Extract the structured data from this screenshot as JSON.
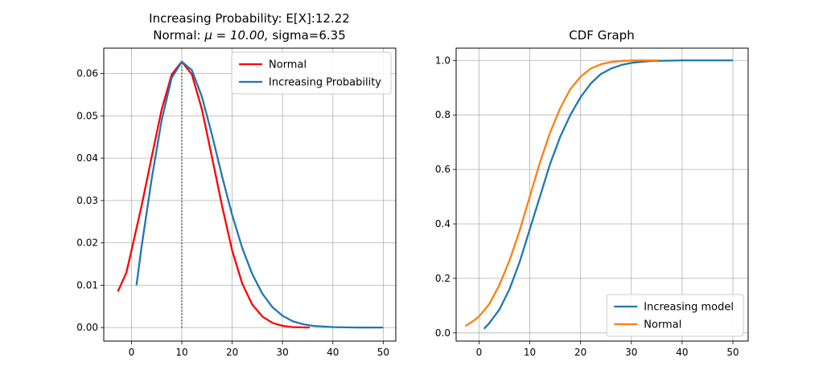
{
  "chart_data": [
    {
      "type": "line",
      "title": "Increasing Probability: E[X]:12.22",
      "subtitle_prefix": "Normal: ",
      "subtitle_math": "μ = 10.00,",
      "subtitle_suffix": " sigma=6.35",
      "xlabel": "",
      "ylabel": "",
      "xlim": [
        -5.5,
        52.5
      ],
      "ylim": [
        -0.0032,
        0.066
      ],
      "xticks": [
        0,
        10,
        20,
        30,
        40,
        50
      ],
      "yticks": [
        0.0,
        0.01,
        0.02,
        0.03,
        0.04,
        0.05,
        0.06
      ],
      "ytick_labels": [
        "0.00",
        "0.01",
        "0.02",
        "0.03",
        "0.04",
        "0.05",
        "0.06"
      ],
      "grid": true,
      "legend_position": "top-right",
      "vline": {
        "x": 10,
        "y0": 0,
        "y1": 0.0628,
        "color": "#008000",
        "style": "dotted"
      },
      "series": [
        {
          "name": "Normal",
          "color": "#ff0000",
          "points": [
            [
              -2.7,
              0.0085
            ],
            [
              -1,
              0.013
            ],
            [
              0,
              0.0182
            ],
            [
              2,
              0.0287
            ],
            [
              4,
              0.0402
            ],
            [
              6,
              0.0515
            ],
            [
              8,
              0.0598
            ],
            [
              10,
              0.0628
            ],
            [
              12,
              0.0598
            ],
            [
              14,
              0.0515
            ],
            [
              16,
              0.0402
            ],
            [
              18,
              0.0287
            ],
            [
              20,
              0.0182
            ],
            [
              22,
              0.0104
            ],
            [
              24,
              0.0054
            ],
            [
              26,
              0.0026
            ],
            [
              28,
              0.0011
            ],
            [
              30,
              0.0004
            ],
            [
              32,
              0.0001
            ],
            [
              35.4,
              0.0
            ]
          ]
        },
        {
          "name": "Increasing Probability",
          "color": "#1f77b4",
          "points": [
            [
              1,
              0.01
            ],
            [
              2,
              0.019
            ],
            [
              4,
              0.035
            ],
            [
              6,
              0.049
            ],
            [
              8,
              0.059
            ],
            [
              10,
              0.0628
            ],
            [
              12,
              0.0608
            ],
            [
              14,
              0.0545
            ],
            [
              16,
              0.0455
            ],
            [
              18,
              0.0357
            ],
            [
              20,
              0.0266
            ],
            [
              22,
              0.0188
            ],
            [
              24,
              0.0126
            ],
            [
              26,
              0.008
            ],
            [
              28,
              0.0048
            ],
            [
              30,
              0.0028
            ],
            [
              32,
              0.0015
            ],
            [
              34,
              0.0008
            ],
            [
              36,
              0.0004
            ],
            [
              40,
              0.0001
            ],
            [
              45,
              0.0
            ],
            [
              50,
              0.0
            ]
          ]
        }
      ]
    },
    {
      "type": "line",
      "title": "CDF Graph",
      "xlabel": "",
      "ylabel": "",
      "xlim": [
        -4.5,
        53
      ],
      "ylim": [
        -0.03,
        1.045
      ],
      "xticks": [
        0,
        10,
        20,
        30,
        40,
        50
      ],
      "yticks": [
        0.0,
        0.2,
        0.4,
        0.6,
        0.8,
        1.0
      ],
      "ytick_labels": [
        "0.0",
        "0.2",
        "0.4",
        "0.6",
        "0.8",
        "1.0"
      ],
      "grid": true,
      "legend_position": "bottom-right",
      "series": [
        {
          "name": "Increasing model",
          "color": "#1f77b4",
          "points": [
            [
              1,
              0.015
            ],
            [
              2,
              0.035
            ],
            [
              4,
              0.085
            ],
            [
              6,
              0.16
            ],
            [
              8,
              0.26
            ],
            [
              10,
              0.38
            ],
            [
              12,
              0.5
            ],
            [
              14,
              0.62
            ],
            [
              16,
              0.72
            ],
            [
              18,
              0.8
            ],
            [
              20,
              0.865
            ],
            [
              22,
              0.915
            ],
            [
              24,
              0.95
            ],
            [
              26,
              0.97
            ],
            [
              28,
              0.983
            ],
            [
              30,
              0.991
            ],
            [
              32,
              0.995
            ],
            [
              34,
              0.998
            ],
            [
              37,
              0.999
            ],
            [
              40,
              1.0
            ],
            [
              45,
              1.0
            ],
            [
              50,
              1.0
            ]
          ]
        },
        {
          "name": "Normal",
          "color": "#ff7f0e",
          "points": [
            [
              -2.7,
              0.025
            ],
            [
              -1,
              0.045
            ],
            [
              0,
              0.06
            ],
            [
              2,
              0.105
            ],
            [
              4,
              0.175
            ],
            [
              6,
              0.265
            ],
            [
              8,
              0.375
            ],
            [
              10,
              0.5
            ],
            [
              12,
              0.625
            ],
            [
              14,
              0.735
            ],
            [
              16,
              0.825
            ],
            [
              18,
              0.895
            ],
            [
              20,
              0.94
            ],
            [
              22,
              0.97
            ],
            [
              24,
              0.986
            ],
            [
              26,
              0.994
            ],
            [
              28,
              0.998
            ],
            [
              30,
              0.9995
            ],
            [
              32,
              1.0
            ],
            [
              35.4,
              1.0
            ]
          ]
        }
      ]
    }
  ]
}
